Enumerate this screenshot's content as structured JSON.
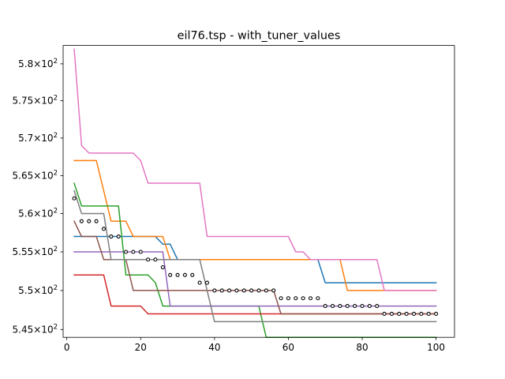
{
  "chart_data": {
    "type": "line",
    "title": "eil76.tsp - with_tuner_values",
    "xlabel": "",
    "ylabel": "",
    "xlim": [
      -1,
      105
    ],
    "ylim": [
      544.0,
      582.5
    ],
    "y_scale": "log",
    "grid": false,
    "x_ticks": [
      0,
      20,
      40,
      60,
      80,
      100
    ],
    "x_tick_labels": [
      "0",
      "20",
      "40",
      "60",
      "80",
      "100"
    ],
    "y_ticks": [
      545,
      550,
      555,
      560,
      565,
      570,
      575,
      580
    ],
    "y_tick_labels": [
      {
        "mant": "5.45",
        "exp": "2"
      },
      {
        "mant": "5.5",
        "exp": "2"
      },
      {
        "mant": "5.55",
        "exp": "2"
      },
      {
        "mant": "5.6",
        "exp": "2"
      },
      {
        "mant": "5.65",
        "exp": "2"
      },
      {
        "mant": "5.7",
        "exp": "2"
      },
      {
        "mant": "5.75",
        "exp": "2"
      },
      {
        "mant": "5.8",
        "exp": "2"
      }
    ],
    "series": [
      {
        "color": "#1f77b4",
        "x": [
          2,
          24,
          26,
          28,
          30,
          68,
          70,
          100
        ],
        "values": [
          557,
          557,
          556,
          556,
          554,
          554,
          551,
          551
        ]
      },
      {
        "color": "#ff7f0e",
        "x": [
          2,
          8,
          12,
          16,
          18,
          26,
          28,
          74,
          76,
          100
        ],
        "values": [
          567,
          567,
          559,
          559,
          557,
          557,
          554,
          554,
          550,
          550
        ]
      },
      {
        "color": "#2ca02c",
        "x": [
          2,
          4,
          14,
          16,
          22,
          24,
          26,
          52,
          54,
          100
        ],
        "values": [
          564,
          561,
          561,
          552,
          552,
          551,
          548,
          548,
          544,
          544
        ]
      },
      {
        "color": "#d62728",
        "x": [
          2,
          10,
          12,
          20,
          22,
          100
        ],
        "values": [
          552,
          552,
          548,
          548,
          547,
          547
        ]
      },
      {
        "color": "#9467bd",
        "x": [
          2,
          26,
          28,
          100
        ],
        "values": [
          555,
          555,
          548,
          548
        ]
      },
      {
        "color": "#8c564b",
        "x": [
          2,
          4,
          8,
          10,
          16,
          18,
          56,
          58,
          100
        ],
        "values": [
          559,
          557,
          557,
          554,
          554,
          550,
          550,
          547,
          547
        ]
      },
      {
        "color": "#e377c2",
        "x": [
          2,
          4,
          6,
          18,
          20,
          22,
          36,
          38,
          60,
          62,
          64,
          66,
          82,
          84,
          86,
          100
        ],
        "values": [
          582,
          569,
          568,
          568,
          567,
          564,
          564,
          557,
          557,
          555,
          555,
          554,
          554,
          554,
          550,
          550
        ]
      },
      {
        "color": "#7f7f7f",
        "x": [
          2,
          4,
          10,
          12,
          36,
          38,
          40,
          100
        ],
        "values": [
          563,
          560,
          560,
          554,
          554,
          550,
          546,
          546
        ]
      },
      {
        "color": "#000000",
        "marker": "circle",
        "x": [
          2,
          4,
          6,
          8,
          10,
          12,
          14,
          16,
          18,
          20,
          22,
          24,
          26,
          28,
          30,
          32,
          34,
          36,
          38,
          40,
          42,
          44,
          46,
          48,
          50,
          52,
          54,
          56,
          58,
          60,
          62,
          64,
          66,
          68,
          70,
          72,
          74,
          76,
          78,
          80,
          82,
          84,
          86,
          88,
          90,
          92,
          94,
          96,
          98,
          100
        ],
        "values": [
          562,
          559,
          559,
          559,
          558,
          557,
          557,
          555,
          555,
          555,
          554,
          554,
          553,
          552,
          552,
          552,
          552,
          551,
          551,
          550,
          550,
          550,
          550,
          550,
          550,
          550,
          550,
          550,
          549,
          549,
          549,
          549,
          549,
          549,
          548,
          548,
          548,
          548,
          548,
          548,
          548,
          548,
          547,
          547,
          547,
          547,
          547,
          547,
          547,
          547
        ]
      }
    ]
  }
}
